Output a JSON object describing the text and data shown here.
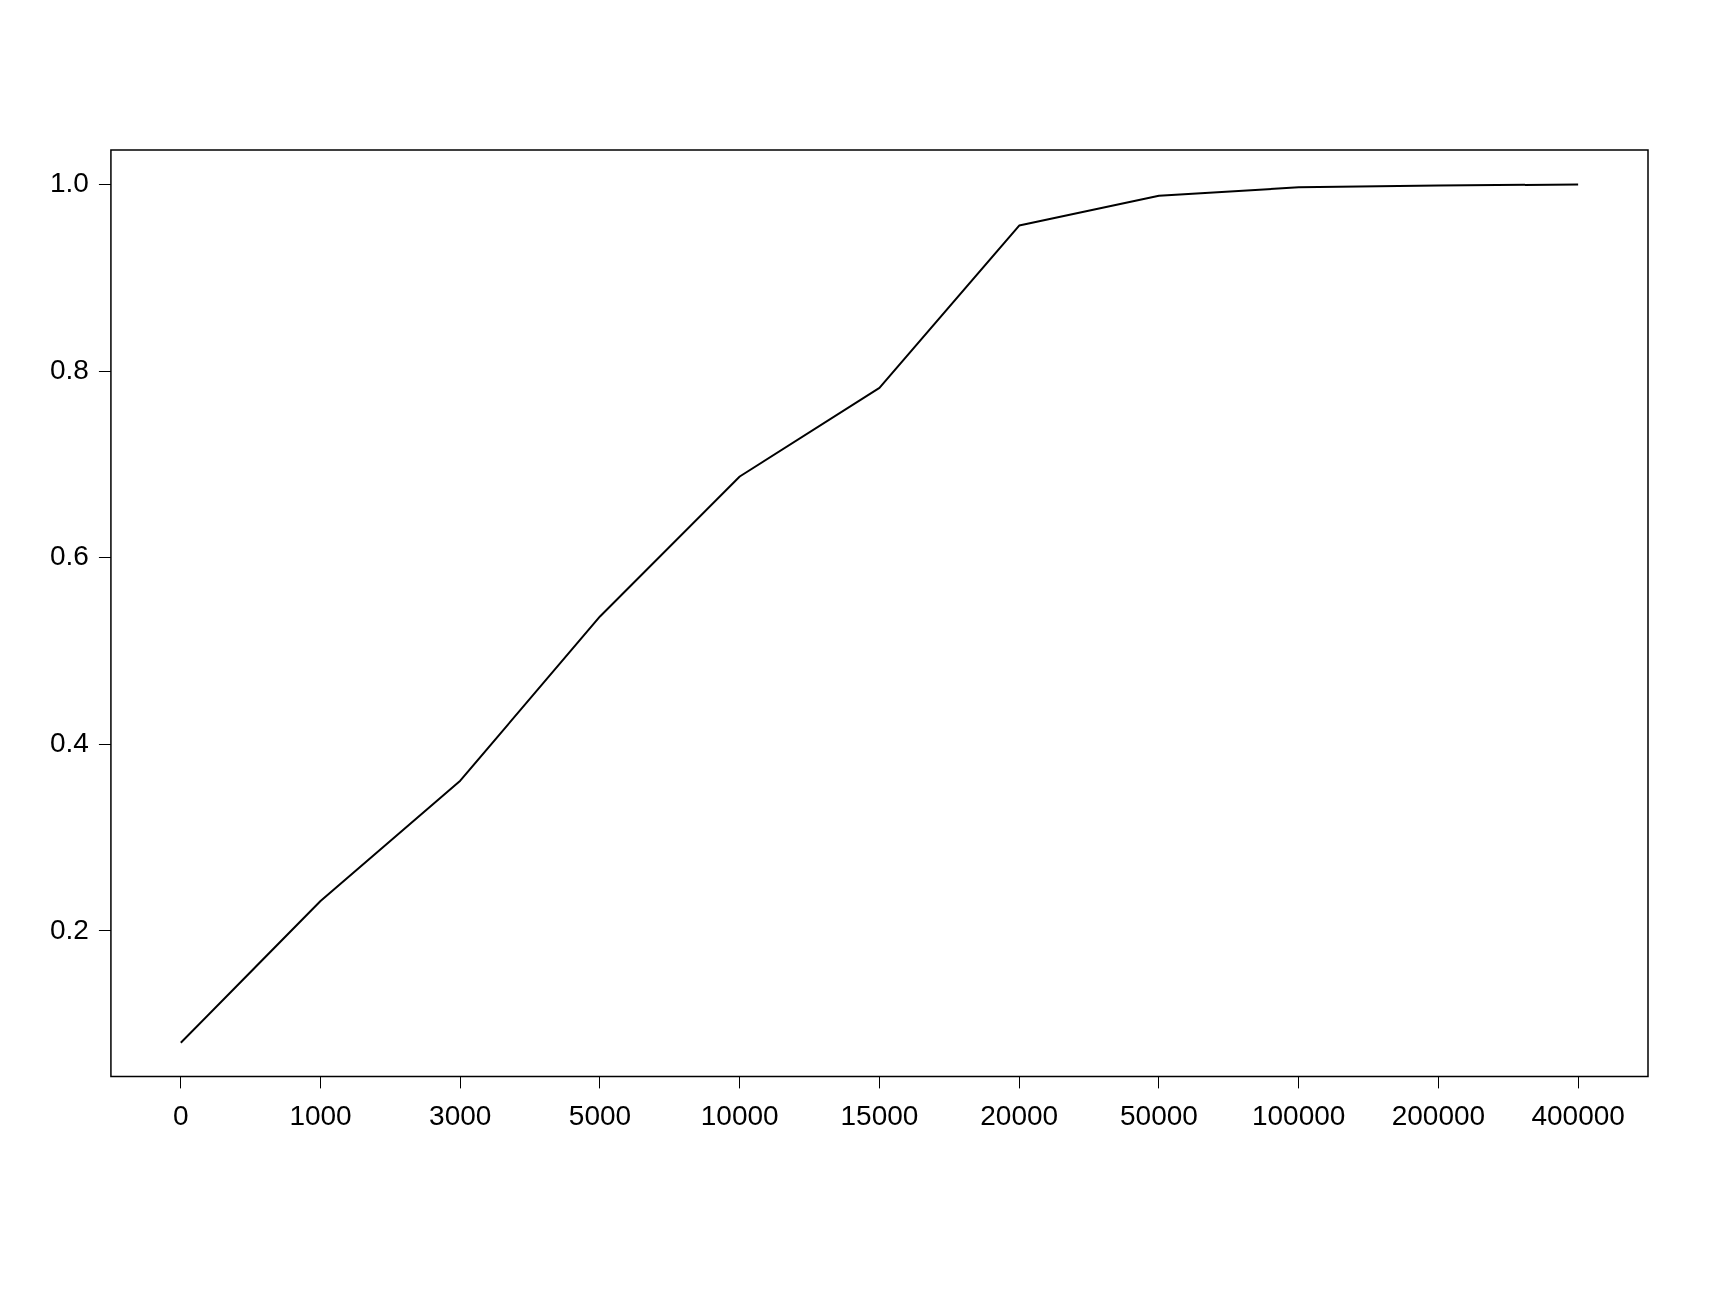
{
  "chart_data": {
    "type": "line",
    "categories": [
      "0",
      "1000",
      "3000",
      "5000",
      "10000",
      "15000",
      "20000",
      "50000",
      "100000",
      "200000",
      "400000"
    ],
    "series": [
      {
        "color": "#000000",
        "values": [
          0.08,
          0.232,
          0.361,
          0.537,
          0.687,
          0.782,
          0.956,
          0.988,
          0.997,
          0.999,
          1.0
        ]
      }
    ],
    "ylim": [
      0.044,
      1.037
    ],
    "yticks": [
      {
        "value": 0.2,
        "label": "0.2"
      },
      {
        "value": 0.4,
        "label": "0.4"
      },
      {
        "value": 0.6,
        "label": "0.6"
      },
      {
        "value": 0.8,
        "label": "0.8"
      },
      {
        "value": 1.0,
        "label": "1.0"
      }
    ],
    "grid": false,
    "legend": false,
    "marker": "none",
    "line_style": "solid"
  }
}
